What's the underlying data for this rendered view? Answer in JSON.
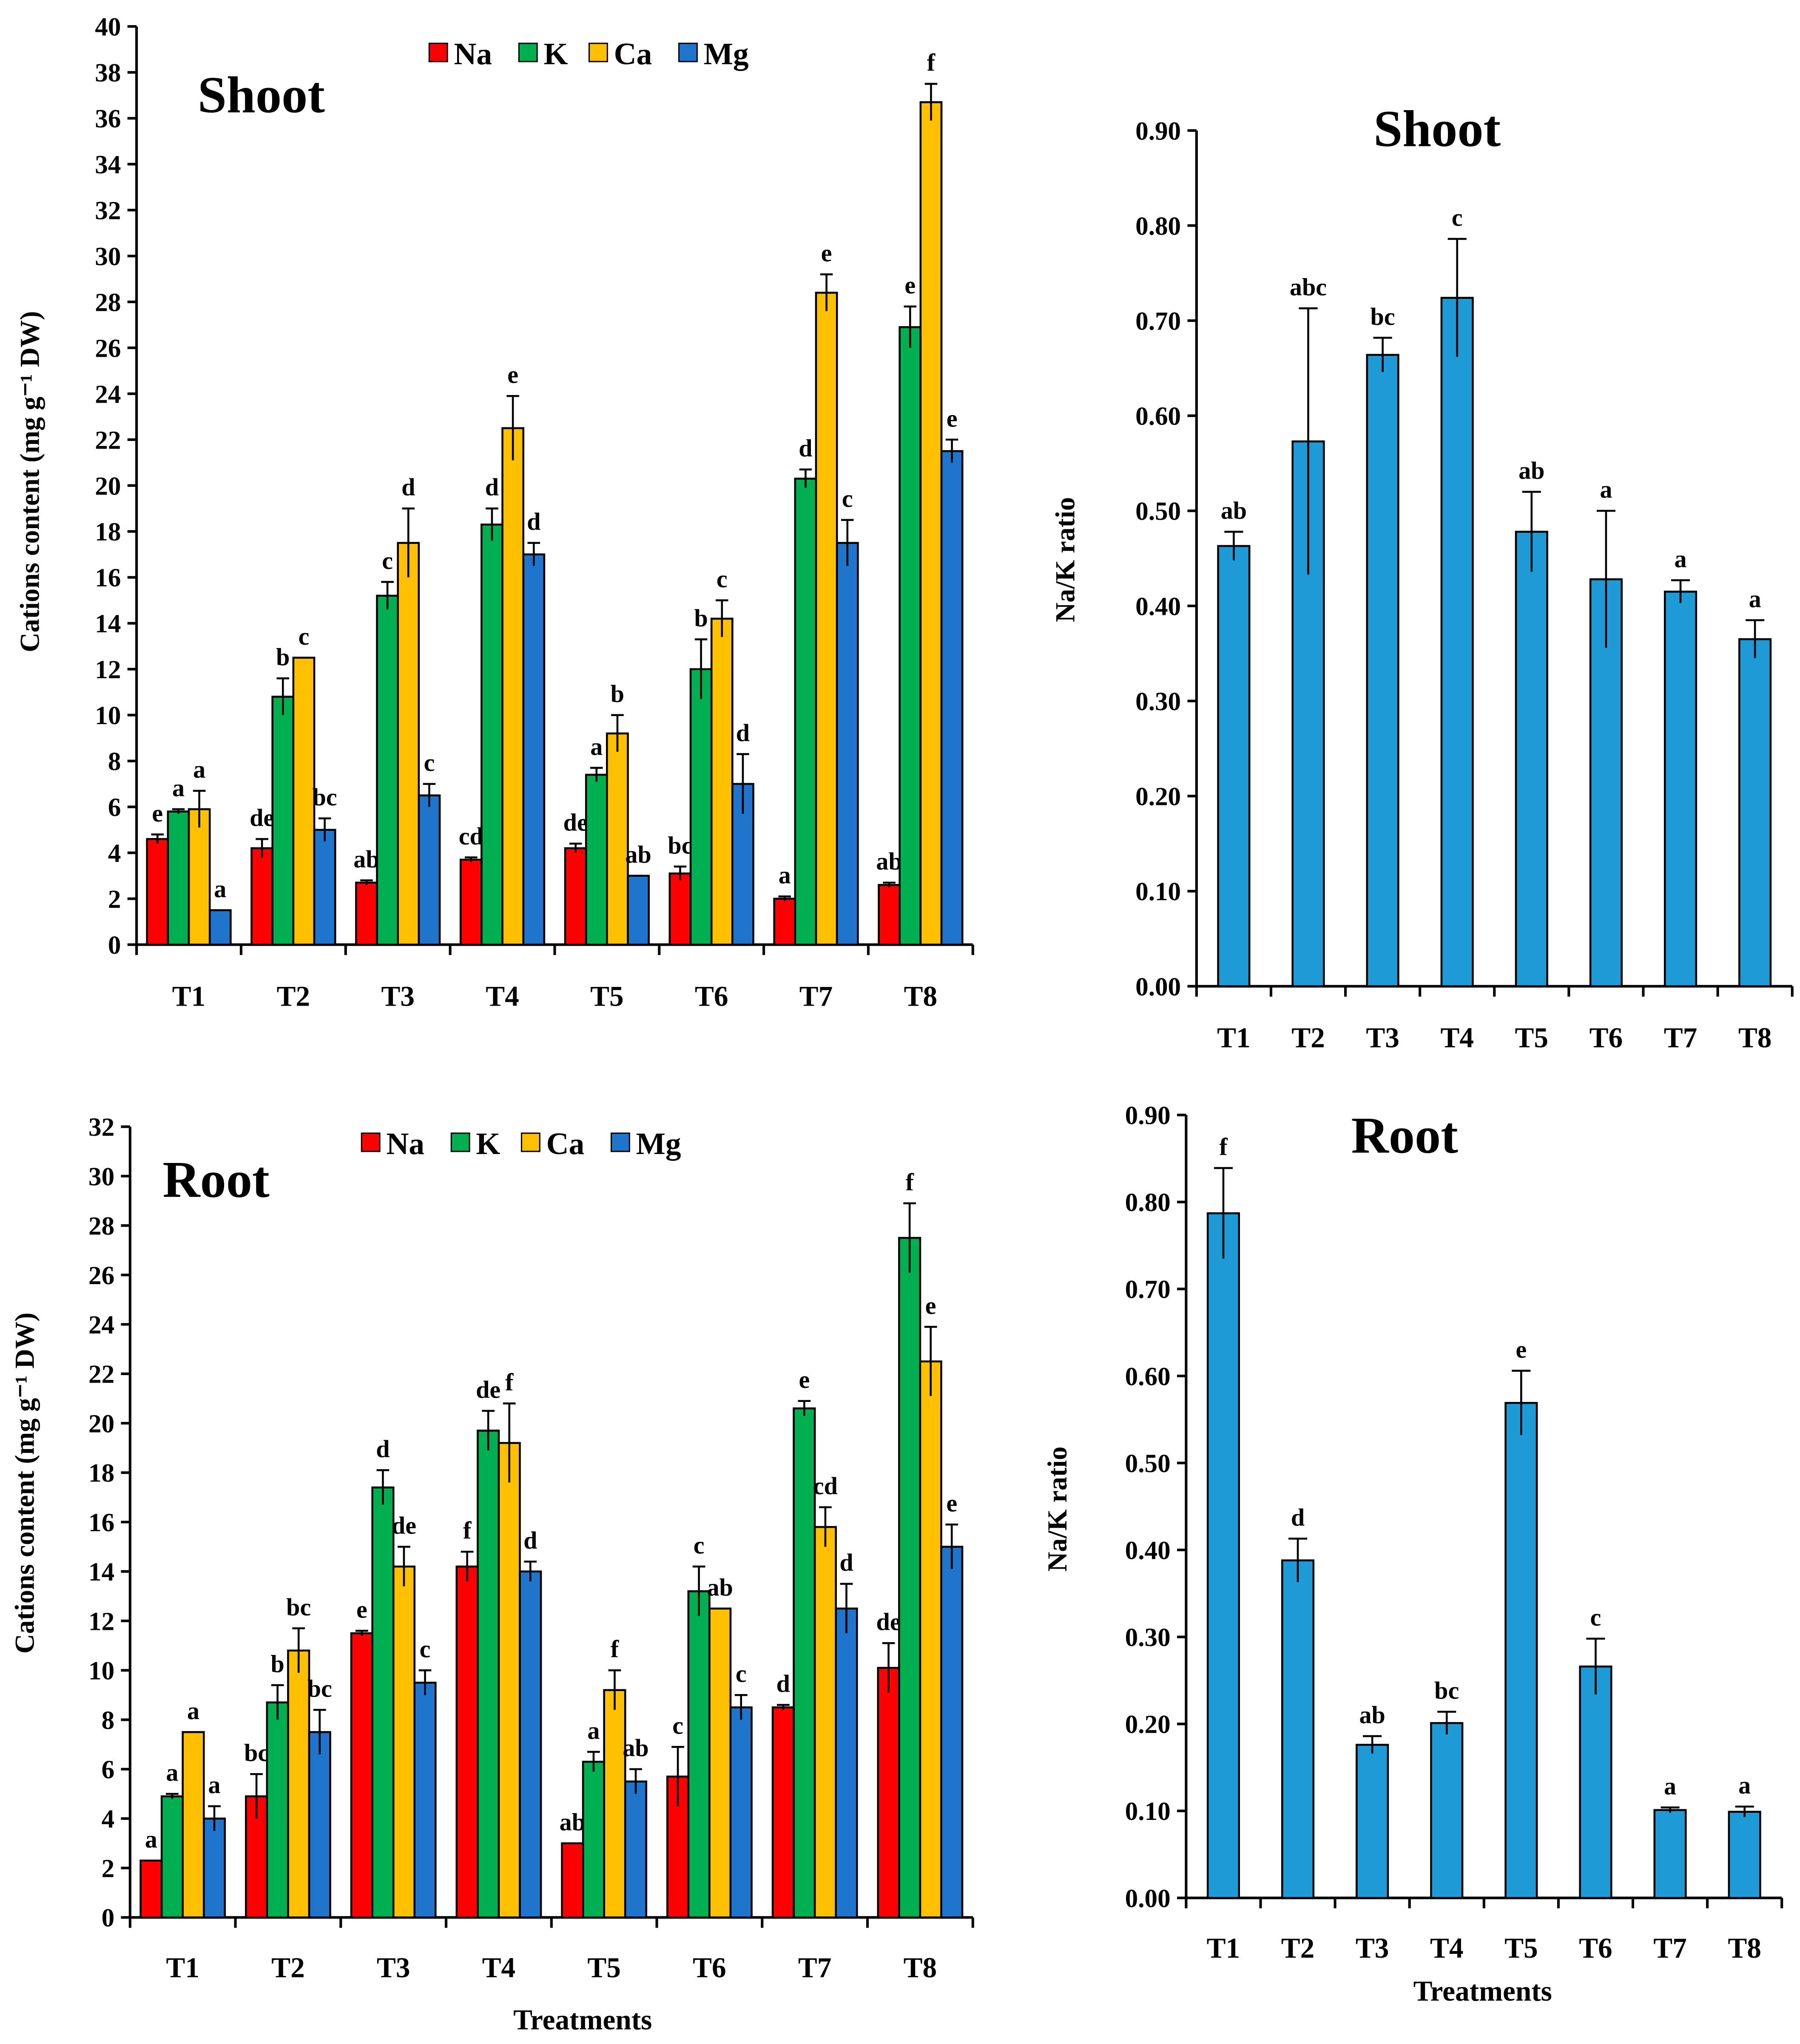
{
  "colors": {
    "Na": "#ff0000",
    "K": "#00b050",
    "Ca": "#ffc000",
    "Mg": "#1f74cc",
    "ratio": "#1e9bd7"
  },
  "chart_data": [
    {
      "id": "shoot-cations",
      "type": "bar",
      "title": "Shoot",
      "ylabel": "Cations content (mg g⁻¹ DW)",
      "xlabel": "",
      "ylim": [
        0,
        40
      ],
      "ystep": 2,
      "ydecimals": 0,
      "categories": [
        "T1",
        "T2",
        "T3",
        "T4",
        "T5",
        "T6",
        "T7",
        "T8"
      ],
      "legend": "top-center",
      "series": [
        {
          "name": "Na",
          "values": [
            4.6,
            4.2,
            2.7,
            3.7,
            4.2,
            3.1,
            2.0,
            2.6
          ],
          "errors": [
            0.2,
            0.4,
            0.1,
            0.1,
            0.2,
            0.3,
            0.1,
            0.1
          ],
          "letters": [
            "e",
            "de",
            "ab",
            "cd",
            "de",
            "bc",
            "a",
            "ab"
          ]
        },
        {
          "name": "K",
          "values": [
            5.8,
            10.8,
            15.2,
            18.3,
            7.4,
            12.0,
            20.3,
            26.9
          ],
          "errors": [
            0.1,
            0.8,
            0.6,
            0.7,
            0.3,
            1.3,
            0.4,
            0.9
          ],
          "letters": [
            "a",
            "b",
            "c",
            "d",
            "a",
            "b",
            "d",
            "e"
          ]
        },
        {
          "name": "Ca",
          "values": [
            5.9,
            12.5,
            17.5,
            22.5,
            9.2,
            14.2,
            28.4,
            36.7
          ],
          "errors": [
            0.8,
            0,
            1.5,
            1.4,
            0.8,
            0.8,
            0.8,
            0.8
          ],
          "letters": [
            "a",
            "c",
            "d",
            "e",
            "b",
            "c",
            "e",
            "f"
          ]
        },
        {
          "name": "Mg",
          "values": [
            1.5,
            5.0,
            6.5,
            17.0,
            3.0,
            7.0,
            17.5,
            21.5
          ],
          "errors": [
            0,
            0.5,
            0.5,
            0.5,
            0,
            1.3,
            1.0,
            0.5
          ],
          "letters": [
            "a",
            "bc",
            "c",
            "d",
            "ab",
            "d",
            "c",
            "e"
          ]
        }
      ]
    },
    {
      "id": "shoot-ratio",
      "type": "bar",
      "title": "Shoot",
      "ylabel": "Na/K ratio",
      "xlabel": "",
      "ylim": [
        0,
        0.9
      ],
      "ystep": 0.1,
      "ydecimals": 2,
      "categories": [
        "T1",
        "T2",
        "T3",
        "T4",
        "T5",
        "T6",
        "T7",
        "T8"
      ],
      "series": [
        {
          "name": "Na/K",
          "values": [
            0.463,
            0.573,
            0.664,
            0.724,
            0.478,
            0.428,
            0.415,
            0.365
          ],
          "errors": [
            0.015,
            0.14,
            0.018,
            0.062,
            0.042,
            0.072,
            0.012,
            0.02
          ],
          "letters": [
            "ab",
            "abc",
            "bc",
            "c",
            "ab",
            "a",
            "a",
            "a"
          ]
        }
      ]
    },
    {
      "id": "root-cations",
      "type": "bar",
      "title": "Root",
      "ylabel": "Cations content (mg g⁻¹ DW)",
      "xlabel": "Treatments",
      "ylim": [
        0,
        32
      ],
      "ystep": 2,
      "ydecimals": 0,
      "categories": [
        "T1",
        "T2",
        "T3",
        "T4",
        "T5",
        "T6",
        "T7",
        "T8"
      ],
      "legend": "top-center",
      "series": [
        {
          "name": "Na",
          "values": [
            2.3,
            4.9,
            11.5,
            14.2,
            3.0,
            5.7,
            8.5,
            10.1
          ],
          "errors": [
            0,
            0.9,
            0.1,
            0.6,
            0,
            1.2,
            0.1,
            1.0
          ],
          "letters": [
            "a",
            "bc",
            "e",
            "f",
            "ab",
            "c",
            "d",
            "de"
          ]
        },
        {
          "name": "K",
          "values": [
            4.9,
            8.7,
            17.4,
            19.7,
            6.3,
            13.2,
            20.6,
            27.5
          ],
          "errors": [
            0.1,
            0.7,
            0.7,
            0.8,
            0.4,
            1.0,
            0.3,
            1.4
          ],
          "letters": [
            "a",
            "b",
            "d",
            "de",
            "a",
            "c",
            "e",
            "f"
          ]
        },
        {
          "name": "Ca",
          "values": [
            7.5,
            10.8,
            14.2,
            19.2,
            9.2,
            12.5,
            15.8,
            22.5
          ],
          "errors": [
            0,
            0.9,
            0.8,
            1.6,
            0.8,
            0,
            0.8,
            1.4
          ],
          "letters": [
            "a",
            "bc",
            "de",
            "f",
            "f",
            "ab",
            "cd",
            "e"
          ]
        },
        {
          "name": "Mg",
          "values": [
            4.0,
            7.5,
            9.5,
            14.0,
            5.5,
            8.5,
            12.5,
            15.0
          ],
          "errors": [
            0.5,
            0.9,
            0.5,
            0.4,
            0.5,
            0.5,
            1.0,
            0.9
          ],
          "letters": [
            "a",
            "bc",
            "c",
            "d",
            "ab",
            "c",
            "d",
            "e"
          ]
        }
      ]
    },
    {
      "id": "root-ratio",
      "type": "bar",
      "title": "Root",
      "ylabel": "Na/K ratio",
      "xlabel": "Treatments",
      "ylim": [
        0,
        0.9
      ],
      "ystep": 0.1,
      "ydecimals": 2,
      "categories": [
        "T1",
        "T2",
        "T3",
        "T4",
        "T5",
        "T6",
        "T7",
        "T8"
      ],
      "series": [
        {
          "name": "Na/K",
          "values": [
            0.787,
            0.388,
            0.176,
            0.201,
            0.569,
            0.266,
            0.101,
            0.099
          ],
          "errors": [
            0.052,
            0.025,
            0.01,
            0.013,
            0.037,
            0.032,
            0.003,
            0.006
          ],
          "letters": [
            "f",
            "d",
            "ab",
            "bc",
            "e",
            "c",
            "a",
            "a"
          ]
        }
      ]
    }
  ]
}
